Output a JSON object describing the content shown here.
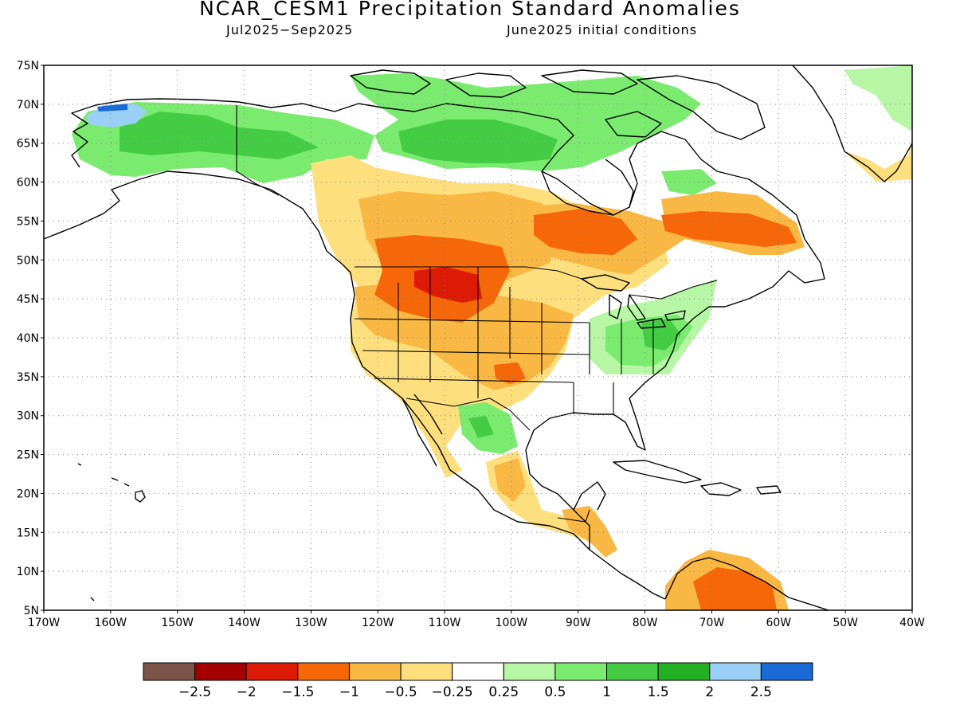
{
  "header": {
    "title": "NCAR_CESM1 Precipitation Standard Anomalies",
    "period": "Jul2025−Sep2025",
    "init": "June2025 initial conditions"
  },
  "map": {
    "projection": "equirectangular",
    "lon_range": [
      -170,
      -40
    ],
    "lat_range": [
      5,
      75
    ],
    "grid": "dotted",
    "lat_ticks": [
      "75N",
      "70N",
      "65N",
      "60N",
      "55N",
      "50N",
      "45N",
      "40N",
      "35N",
      "30N",
      "25N",
      "20N",
      "15N",
      "10N",
      "5N"
    ],
    "lon_ticks": [
      "170W",
      "160W",
      "150W",
      "140W",
      "130W",
      "120W",
      "110W",
      "100W",
      "90W",
      "80W",
      "70W",
      "60W",
      "50W",
      "40W"
    ]
  },
  "colorbar": {
    "colors": [
      "#7a5548",
      "#a50000",
      "#dd1a06",
      "#f56708",
      "#f9b744",
      "#fde07d",
      "#ffffff",
      "#b7f6a5",
      "#7beb6f",
      "#44cc44",
      "#23b023",
      "#9bd0f6",
      "#1a6ad8"
    ],
    "labels": [
      "−2.5",
      "−2",
      "−1.5",
      "−1",
      "−0.5",
      "−0.25",
      "0.25",
      "0.5",
      "1",
      "1.5",
      "2",
      "2.5"
    ]
  },
  "anomaly_regions": [
    {
      "region": "alaska-interior",
      "level": 1.5,
      "color": "#44cc44"
    },
    {
      "region": "northwest-alaska",
      "level": 2.5,
      "color": "#1a6ad8"
    },
    {
      "region": "yukon-nwt",
      "level": 1.5,
      "color": "#44cc44"
    },
    {
      "region": "nunavut-mainland",
      "level": 1,
      "color": "#7beb6f"
    },
    {
      "region": "hudson-bay-west",
      "level": 1.5,
      "color": "#44cc44"
    },
    {
      "region": "canadian-prairies",
      "level": -1,
      "color": "#f9b744"
    },
    {
      "region": "northern-rockies",
      "level": -1.5,
      "color": "#f56708"
    },
    {
      "region": "montana-wyoming",
      "level": -2,
      "color": "#dd1a06"
    },
    {
      "region": "ontario-quebec",
      "level": -1.5,
      "color": "#f56708"
    },
    {
      "region": "labrador",
      "level": -1.5,
      "color": "#f56708"
    },
    {
      "region": "great-basin",
      "level": -0.5,
      "color": "#fde07d"
    },
    {
      "region": "southern-plains",
      "level": -1,
      "color": "#f9b744"
    },
    {
      "region": "ohio-valley",
      "level": 1,
      "color": "#7beb6f"
    },
    {
      "region": "sierra-madre",
      "level": 1,
      "color": "#7beb6f"
    },
    {
      "region": "southern-mexico",
      "level": -1,
      "color": "#f9b744"
    },
    {
      "region": "northern-south-america",
      "level": -1.5,
      "color": "#f56708"
    },
    {
      "region": "greenland-southeast",
      "level": -0.5,
      "color": "#fde07d"
    },
    {
      "region": "greenland-east",
      "level": 0.5,
      "color": "#b7f6a5"
    }
  ]
}
